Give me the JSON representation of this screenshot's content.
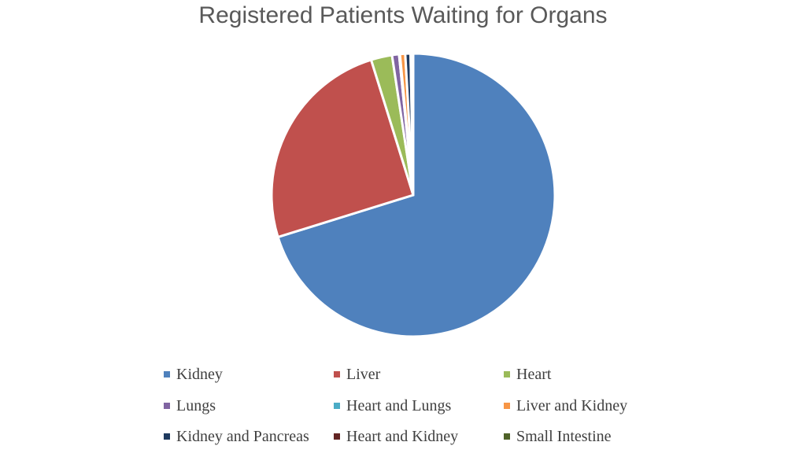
{
  "chart_data": {
    "type": "pie",
    "title": "Registered Patients Waiting for Organs",
    "categories": [
      "Kidney",
      "Liver",
      "Heart",
      "Lungs",
      "Heart and Lungs",
      "Liver and Kidney",
      "Kidney and Pancreas",
      "Heart and Kidney",
      "Small Intestine"
    ],
    "values": [
      70.2,
      25.0,
      2.4,
      0.8,
      0.1,
      0.6,
      0.6,
      0.2,
      0.1
    ],
    "value_unit": "percent (estimated)",
    "colors": [
      "#4F81BD",
      "#C0504D",
      "#9BBB59",
      "#8064A2",
      "#4BACC6",
      "#F79646",
      "#1F3A5F",
      "#632523",
      "#4F6228"
    ],
    "legend_position": "bottom",
    "start_angle_deg": 0,
    "direction": "clockwise"
  }
}
